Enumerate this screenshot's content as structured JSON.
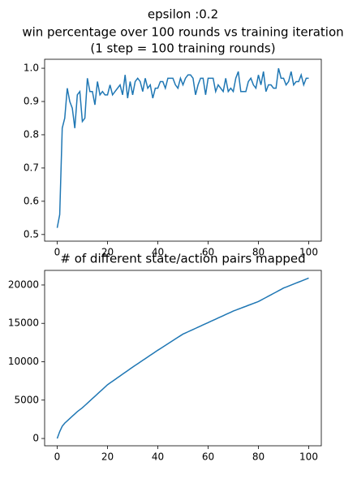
{
  "chart_data": [
    {
      "type": "line",
      "title": [
        "epsilon :0.2",
        "win percentage over 100 rounds vs training iteration",
        "(1 step = 100 training rounds)"
      ],
      "x": [
        0,
        1,
        2,
        3,
        4,
        5,
        6,
        7,
        8,
        9,
        10,
        11,
        12,
        13,
        14,
        15,
        16,
        17,
        18,
        19,
        20,
        21,
        22,
        23,
        24,
        25,
        26,
        27,
        28,
        29,
        30,
        31,
        32,
        33,
        34,
        35,
        36,
        37,
        38,
        39,
        40,
        41,
        42,
        43,
        44,
        45,
        46,
        47,
        48,
        49,
        50,
        51,
        52,
        53,
        54,
        55,
        56,
        57,
        58,
        59,
        60,
        61,
        62,
        63,
        64,
        65,
        66,
        67,
        68,
        69,
        70,
        71,
        72,
        73,
        74,
        75,
        76,
        77,
        78,
        79,
        80,
        81,
        82,
        83,
        84,
        85,
        86,
        87,
        88,
        89,
        90,
        91,
        92,
        93,
        94,
        95,
        96,
        97,
        98,
        99,
        100
      ],
      "values": [
        0.52,
        0.56,
        0.82,
        0.85,
        0.94,
        0.9,
        0.88,
        0.82,
        0.92,
        0.93,
        0.84,
        0.85,
        0.97,
        0.93,
        0.93,
        0.89,
        0.96,
        0.92,
        0.93,
        0.92,
        0.92,
        0.95,
        0.92,
        0.93,
        0.94,
        0.95,
        0.92,
        0.98,
        0.91,
        0.96,
        0.92,
        0.96,
        0.97,
        0.96,
        0.93,
        0.97,
        0.94,
        0.95,
        0.91,
        0.94,
        0.94,
        0.96,
        0.96,
        0.94,
        0.97,
        0.97,
        0.97,
        0.95,
        0.94,
        0.97,
        0.95,
        0.97,
        0.98,
        0.98,
        0.97,
        0.92,
        0.95,
        0.97,
        0.97,
        0.92,
        0.97,
        0.97,
        0.97,
        0.93,
        0.95,
        0.94,
        0.93,
        0.97,
        0.93,
        0.94,
        0.93,
        0.97,
        0.99,
        0.93,
        0.93,
        0.93,
        0.96,
        0.97,
        0.95,
        0.94,
        0.98,
        0.95,
        0.99,
        0.93,
        0.95,
        0.95,
        0.94,
        0.94,
        1.0,
        0.97,
        0.97,
        0.95,
        0.96,
        0.99,
        0.95,
        0.96,
        0.96,
        0.98,
        0.95,
        0.97,
        0.97
      ],
      "color": "#1f77b4",
      "xlim": [
        -5,
        105
      ],
      "xticks": [
        0,
        20,
        40,
        60,
        80,
        100
      ],
      "ylim": [
        0.48,
        1.027
      ],
      "yticks": [
        0.5,
        0.6,
        0.7,
        0.8,
        0.9,
        {
          "value": 1,
          "label": "1.0"
        }
      ]
    },
    {
      "type": "line",
      "title": [
        "# of different state/action pairs mapped"
      ],
      "x": [
        0,
        1,
        2,
        3,
        4,
        5,
        6,
        7,
        8,
        9,
        10,
        11,
        12,
        13,
        14,
        15,
        16,
        17,
        18,
        19,
        20,
        21,
        22,
        23,
        24,
        25,
        26,
        27,
        28,
        29,
        30,
        31,
        32,
        33,
        34,
        35,
        36,
        37,
        38,
        39,
        40,
        41,
        42,
        43,
        44,
        45,
        46,
        47,
        48,
        49,
        50,
        51,
        52,
        53,
        54,
        55,
        56,
        57,
        58,
        59,
        60,
        61,
        62,
        63,
        64,
        65,
        66,
        67,
        68,
        69,
        70,
        71,
        72,
        73,
        74,
        75,
        76,
        77,
        78,
        79,
        80,
        81,
        82,
        83,
        84,
        85,
        86,
        87,
        88,
        89,
        90,
        91,
        92,
        93,
        94,
        95,
        96,
        97,
        98,
        99,
        100
      ],
      "values": [
        0,
        900,
        1600,
        2000,
        2300,
        2600,
        2900,
        3200,
        3500,
        3750,
        4000,
        4300,
        4600,
        4900,
        5200,
        5500,
        5800,
        6100,
        6400,
        6700,
        7000,
        7230,
        7460,
        7690,
        7920,
        8150,
        8380,
        8610,
        8840,
        9070,
        9300,
        9520,
        9740,
        9960,
        10180,
        10400,
        10620,
        10840,
        11060,
        11280,
        11500,
        11710,
        11920,
        12130,
        12340,
        12550,
        12760,
        12970,
        13180,
        13390,
        13600,
        13750,
        13900,
        14050,
        14200,
        14350,
        14500,
        14650,
        14800,
        14950,
        15100,
        15250,
        15400,
        15550,
        15700,
        15850,
        16000,
        16150,
        16300,
        16450,
        16600,
        16720,
        16850,
        16970,
        17100,
        17220,
        17350,
        17470,
        17600,
        17720,
        17850,
        18020,
        18200,
        18370,
        18550,
        18720,
        18900,
        19070,
        19250,
        19420,
        19600,
        19730,
        19860,
        19990,
        20120,
        20250,
        20380,
        20510,
        20640,
        20770,
        20900
      ],
      "color": "#1f77b4",
      "xlim": [
        -5,
        105
      ],
      "xticks": [
        0,
        20,
        40,
        60,
        80,
        100
      ],
      "ylim": [
        -950,
        21900
      ],
      "yticks": [
        0,
        5000,
        10000,
        15000,
        20000
      ]
    }
  ]
}
